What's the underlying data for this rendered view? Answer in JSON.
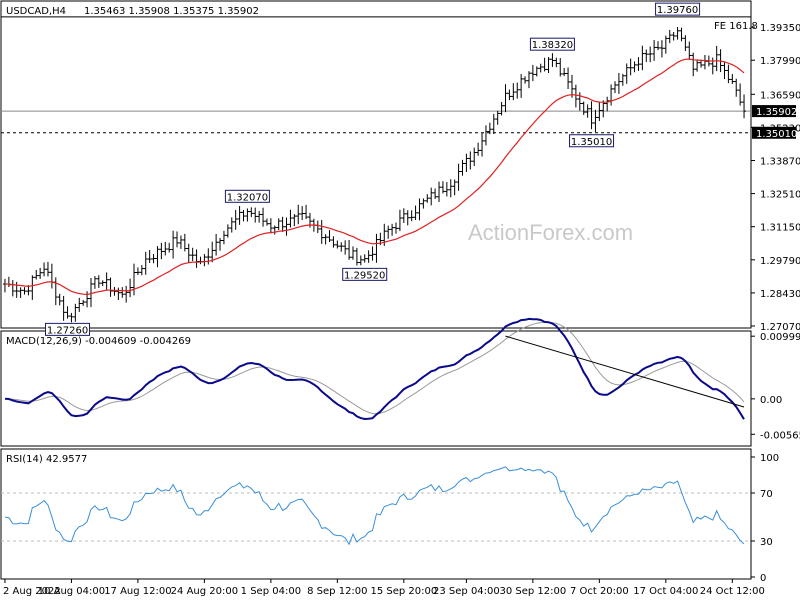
{
  "header": {
    "symbol": "USDCAD,H4",
    "ohlc": "1.35463 1.35908 1.35375 1.35902"
  },
  "watermark": "ActionForex.com",
  "colors": {
    "candle": "#000000",
    "ma": "#e02020",
    "macd": "#0a0a8a",
    "signal": "#9a9a9a",
    "rsi": "#3a8fd8",
    "level_line": "#000000",
    "price_tag_bg": "#000000",
    "grid": "#bdbdbd"
  },
  "price_panel": {
    "y_ticks": [
      "1.39350",
      "1.37990",
      "1.36590",
      "1.35230",
      "1.33870",
      "1.32510",
      "1.31150",
      "1.29790",
      "1.28430",
      "1.27070"
    ],
    "fe_label": "FE 161.8",
    "fe_level": 1.3977,
    "support_level": 1.3501,
    "current_price_label": "1.35902",
    "support_label": "1.35010",
    "annotations": [
      {
        "text": "1.27260",
        "value": 1.2726,
        "bar": 16,
        "anchor": "below"
      },
      {
        "text": "1.32070",
        "value": 1.3207,
        "bar": 62,
        "anchor": "above"
      },
      {
        "text": "1.29520",
        "value": 1.2952,
        "bar": 92,
        "anchor": "below"
      },
      {
        "text": "1.38320",
        "value": 1.3832,
        "bar": 140,
        "anchor": "above"
      },
      {
        "text": "1.35010",
        "value": 1.3501,
        "bar": 150,
        "anchor": "below"
      },
      {
        "text": "1.39760",
        "value": 1.3976,
        "bar": 172,
        "anchor": "above"
      }
    ]
  },
  "macd_panel": {
    "label": "MACD(12,26,9) -0.004609 -0.004269",
    "y_ticks": [
      "0.009991",
      "0.00",
      "-0.005651"
    ]
  },
  "rsi_panel": {
    "label": "RSI(14) 42.9577",
    "y_ticks": [
      "100",
      "70",
      "30",
      "0"
    ],
    "levels": [
      70,
      30
    ]
  },
  "x_ticks": [
    "2 Aug 2022",
    "10 Aug 04:00",
    "17 Aug 12:00",
    "24 Aug 20:00",
    "1 Sep 04:00",
    "8 Sep 12:00",
    "15 Sep 20:00",
    "23 Sep 04:00",
    "30 Sep 12:00",
    "7 Oct 20:00",
    "17 Oct 04:00",
    "24 Oct 12:00"
  ],
  "chart_data": {
    "type": "line",
    "title": "USDCAD,H4",
    "x": [
      "2 Aug 2022",
      "10 Aug 04:00",
      "17 Aug 12:00",
      "24 Aug 20:00",
      "1 Sep 04:00",
      "8 Sep 12:00",
      "15 Sep 20:00",
      "23 Sep 04:00",
      "30 Sep 12:00",
      "7 Oct 20:00",
      "17 Oct 04:00",
      "24 Oct 12:00"
    ],
    "series": [
      {
        "values": [
          1.288,
          1.277,
          1.296,
          1.298,
          1.312,
          1.298,
          1.33,
          1.382,
          1.356,
          1.385,
          1.372,
          1.359
        ]
      },
      {
        "values": [
          1.286,
          1.284,
          1.292,
          1.297,
          1.307,
          1.305,
          1.317,
          1.35,
          1.365,
          1.376,
          1.379,
          1.37
        ]
      },
      {
        "values": [
          -0.001,
          -0.004,
          0.002,
          -0.001,
          0.003,
          -0.004,
          0.003,
          0.009,
          -0.003,
          0.003,
          -0.001,
          -0.005
        ]
      },
      {
        "values": [
          -0.0005,
          -0.003,
          0.0015,
          -0.0005,
          0.002,
          -0.003,
          0.002,
          0.008,
          -0.001,
          0.0025,
          0.0,
          -0.0043
        ]
      },
      {
        "values": [
          52,
          38,
          58,
          48,
          62,
          36,
          60,
          72,
          45,
          60,
          50,
          43
        ]
      }
    ],
    "ylim": [
      1.2707,
      1.403
    ],
    "key_levels": [
      1.3976,
      1.3832,
      1.3207,
      1.2952,
      1.2726,
      1.3501
    ]
  }
}
